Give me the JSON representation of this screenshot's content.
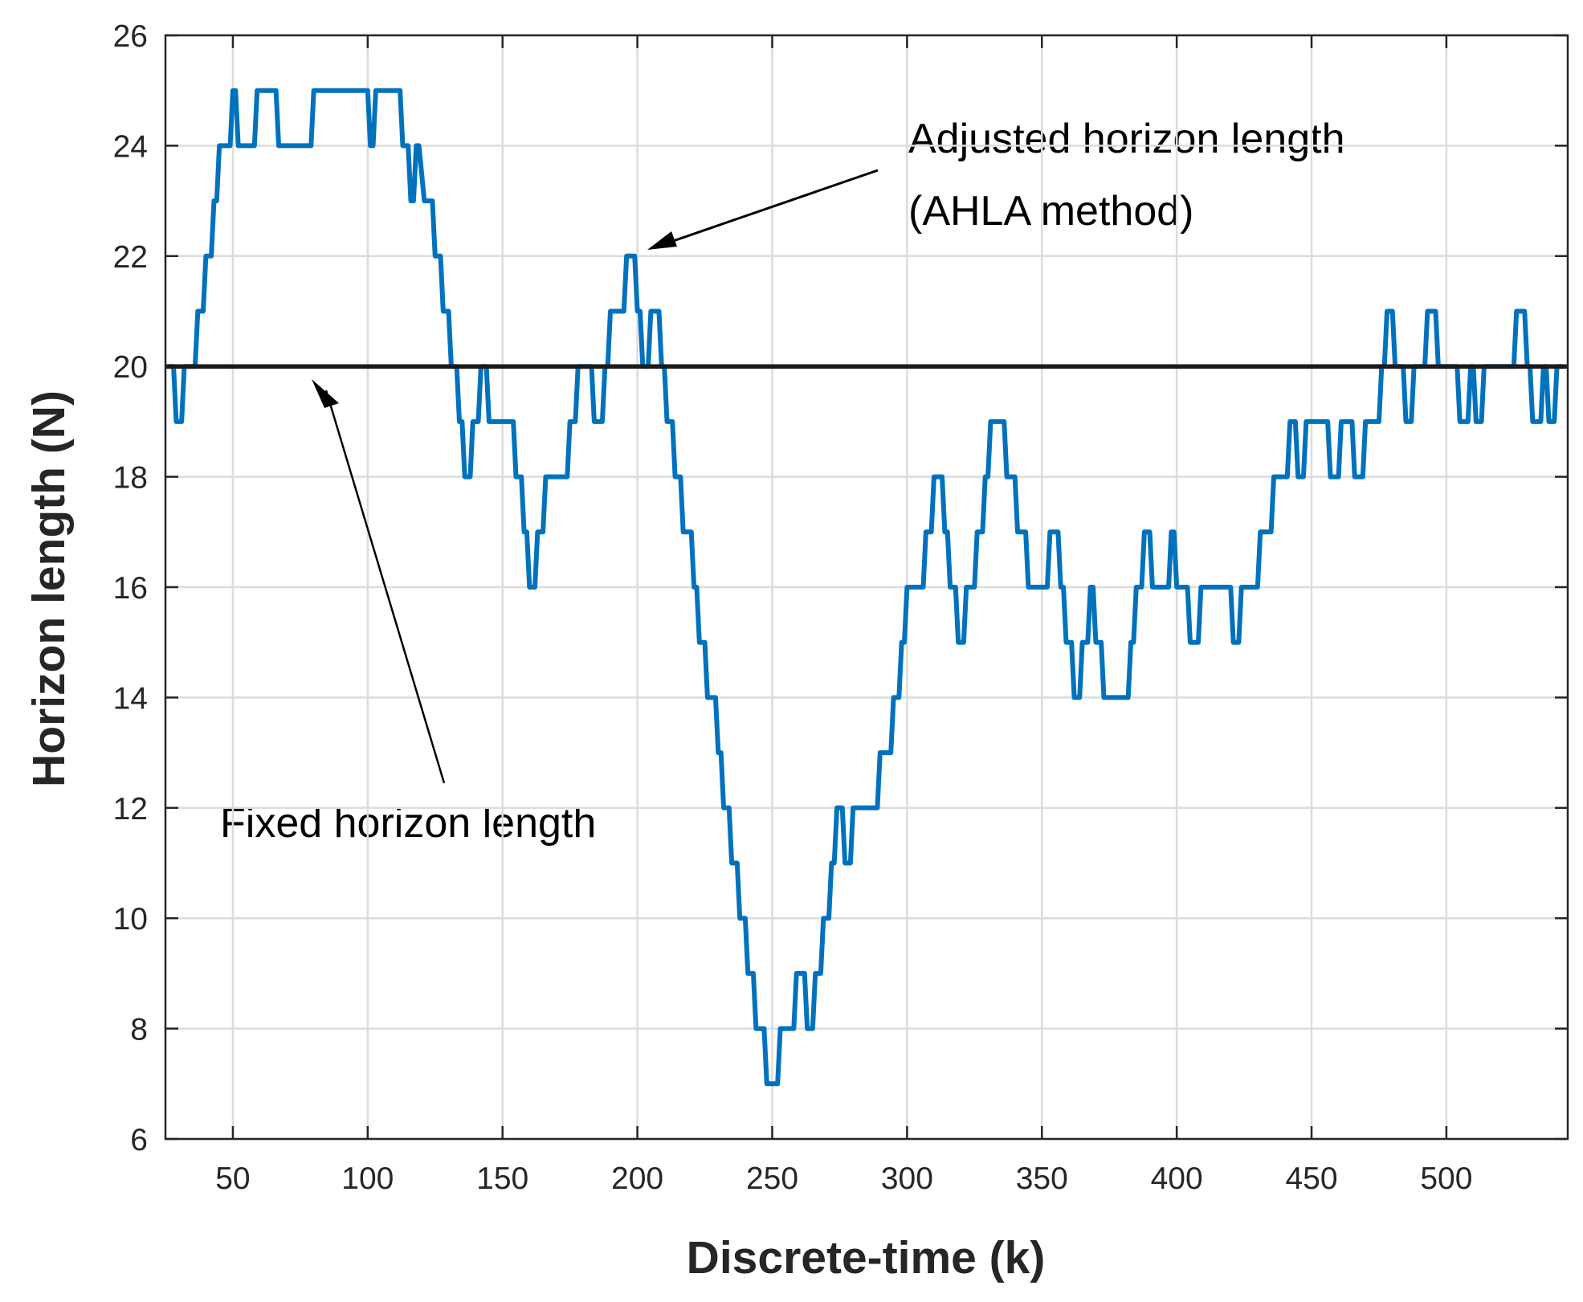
{
  "chart_data": {
    "type": "line",
    "xlabel": "Discrete-time (k)",
    "ylabel": "Horizon length (N)",
    "xlim": [
      25,
      545
    ],
    "ylim": [
      6,
      26
    ],
    "xticks": [
      50,
      100,
      150,
      200,
      250,
      300,
      350,
      400,
      450,
      500
    ],
    "yticks": [
      6,
      8,
      10,
      12,
      14,
      16,
      18,
      20,
      22,
      24,
      26
    ],
    "grid": true,
    "annotations": [
      "Adjusted horizon length",
      "(AHLA method)",
      "Fixed horizon length"
    ],
    "series": [
      {
        "color": "#0072bd",
        "x": [
          26,
          28,
          29,
          31,
          32,
          36,
          37,
          39,
          40,
          42,
          43,
          44,
          45,
          49,
          50,
          51,
          52,
          58,
          59,
          66,
          67,
          79,
          80,
          100,
          101,
          102,
          103,
          112,
          113,
          115,
          116,
          117,
          118,
          119,
          121,
          124,
          125,
          127,
          128,
          130,
          131,
          133,
          134,
          135,
          136,
          138,
          139,
          141,
          142,
          144,
          145,
          154,
          155,
          157,
          158,
          159,
          160,
          162,
          163,
          165,
          166,
          174,
          175,
          177,
          178,
          183,
          184,
          187,
          188,
          189,
          190,
          195,
          196,
          199,
          200,
          201,
          202,
          204,
          205,
          208,
          209,
          210,
          211,
          213,
          214,
          216,
          217,
          220,
          221,
          222,
          223,
          225,
          226,
          229,
          230,
          231,
          232,
          234,
          235,
          237,
          238,
          240,
          241,
          243,
          244,
          247,
          248,
          252,
          253,
          258,
          259,
          262,
          263,
          265,
          266,
          268,
          269,
          271,
          272,
          273,
          274,
          276,
          277,
          279,
          280,
          289,
          290,
          294,
          295,
          297,
          298,
          299,
          300,
          306,
          307,
          309,
          310,
          313,
          314,
          315,
          316,
          318,
          319,
          321,
          322,
          325,
          326,
          328,
          329,
          330,
          331,
          336,
          337,
          340,
          341,
          344,
          345,
          352,
          353,
          356,
          357,
          358,
          359,
          361,
          362,
          364,
          365,
          367,
          368,
          369,
          370,
          372,
          373,
          382,
          383,
          384,
          385,
          387,
          388,
          390,
          391,
          397,
          398,
          399,
          400,
          404,
          405,
          408,
          409,
          420,
          421,
          423,
          424,
          430,
          431,
          435,
          436,
          441,
          442,
          444,
          445,
          447,
          448,
          456,
          457,
          460,
          461,
          465,
          466,
          469,
          470,
          475,
          476,
          477,
          478,
          480,
          481,
          484,
          485,
          487,
          488,
          492,
          493,
          496,
          497,
          504,
          505,
          508,
          509,
          510,
          511,
          513,
          514,
          525,
          526,
          529,
          530,
          531,
          532,
          535,
          536,
          537,
          538,
          540,
          541,
          543
        ],
        "values": [
          20,
          20,
          19,
          19,
          20,
          20,
          21,
          21,
          22,
          22,
          23,
          23,
          24,
          24,
          25,
          25,
          24,
          24,
          25,
          25,
          24,
          24,
          25,
          25,
          24,
          24,
          25,
          25,
          24,
          24,
          23,
          23,
          24,
          24,
          23,
          23,
          22,
          22,
          21,
          21,
          20,
          20,
          19,
          19,
          18,
          18,
          19,
          19,
          20,
          20,
          19,
          19,
          18,
          18,
          17,
          17,
          16,
          16,
          17,
          17,
          18,
          18,
          19,
          19,
          20,
          20,
          19,
          19,
          20,
          20,
          21,
          21,
          22,
          22,
          21,
          21,
          20,
          20,
          21,
          21,
          20,
          20,
          19,
          19,
          18,
          18,
          17,
          17,
          16,
          16,
          15,
          15,
          14,
          14,
          13,
          13,
          12,
          12,
          11,
          11,
          10,
          10,
          9,
          9,
          8,
          8,
          7,
          7,
          8,
          8,
          9,
          9,
          8,
          8,
          9,
          9,
          10,
          10,
          11,
          11,
          12,
          12,
          11,
          11,
          12,
          12,
          13,
          13,
          14,
          14,
          15,
          15,
          16,
          16,
          17,
          17,
          18,
          18,
          17,
          17,
          16,
          16,
          15,
          15,
          16,
          16,
          17,
          17,
          18,
          18,
          19,
          19,
          18,
          18,
          17,
          17,
          16,
          16,
          17,
          17,
          16,
          16,
          15,
          15,
          14,
          14,
          15,
          15,
          16,
          16,
          15,
          15,
          14,
          14,
          15,
          15,
          16,
          16,
          17,
          17,
          16,
          16,
          17,
          17,
          16,
          16,
          15,
          15,
          16,
          16,
          15,
          15,
          16,
          16,
          17,
          17,
          18,
          18,
          19,
          19,
          18,
          18,
          19,
          19,
          18,
          18,
          19,
          19,
          18,
          18,
          19,
          19,
          20,
          20,
          21,
          21,
          20,
          20,
          19,
          19,
          20,
          20,
          21,
          21,
          20,
          20,
          19,
          19,
          20,
          20,
          19,
          19,
          20,
          20,
          21,
          21,
          20,
          20,
          19,
          19,
          20,
          20,
          19,
          19,
          20,
          20
        ]
      },
      {
        "color": "#1a1a1a",
        "x": [
          25,
          545
        ],
        "values": [
          20,
          20
        ]
      }
    ]
  }
}
